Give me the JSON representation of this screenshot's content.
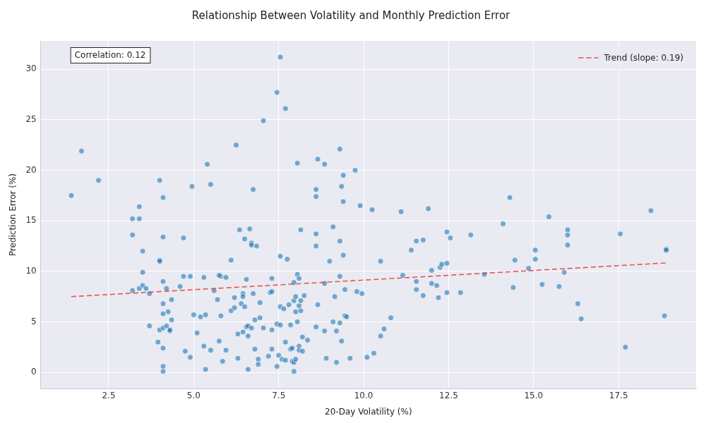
{
  "chart_data": {
    "type": "scatter",
    "title": "Relationship Between Volatility and Monthly Prediction Error",
    "x_label": "20-Day Volatility (%)",
    "y_label": "Prediction Error (%)",
    "annotations": [
      "Correlation: 0.12"
    ],
    "legend": "upper right",
    "grid": true,
    "xlim": [
      0.5,
      19.78
    ],
    "ylim": [
      -1.6,
      32.8
    ],
    "xticks": [
      2.5,
      {
        "value": 5,
        "label": "5.0"
      },
      7.5,
      {
        "value": 10,
        "label": "10.0"
      },
      12.5,
      {
        "value": 15,
        "label": "15.0"
      },
      17.5
    ],
    "yticks": [
      0,
      5,
      10,
      15,
      20,
      25,
      30
    ],
    "series": [
      {
        "type": "scatter",
        "color": "#1f77b4",
        "marker": "circle",
        "x": [
          1.4,
          1.7,
          2.2,
          3.2,
          3.2,
          3.2,
          3.4,
          3.4,
          3.4,
          3.5,
          3.5,
          3.5,
          3.6,
          3.7,
          3.7,
          4.0,
          4.0,
          4.0,
          4.0,
          3.95,
          4.1,
          4.1,
          4.1,
          4.1,
          4.1,
          4.1,
          4.1,
          4.1,
          4.1,
          4.2,
          4.2,
          4.25,
          4.3,
          4.3,
          4.35,
          4.35,
          4.6,
          4.7,
          4.7,
          4.75,
          4.9,
          4.9,
          4.95,
          5.0,
          5.1,
          5.2,
          5.3,
          5.3,
          5.35,
          5.35,
          5.4,
          5.5,
          5.5,
          5.6,
          5.7,
          5.75,
          5.8,
          5.75,
          5.8,
          5.85,
          5.95,
          5.95,
          6.1,
          6.1,
          6.2,
          6.2,
          6.25,
          6.3,
          6.3,
          6.35,
          6.4,
          6.45,
          6.45,
          6.45,
          6.5,
          6.5,
          6.55,
          6.55,
          6.6,
          6.6,
          6.6,
          6.65,
          6.7,
          6.7,
          6.7,
          6.75,
          6.75,
          6.8,
          6.8,
          6.85,
          6.9,
          6.9,
          6.95,
          6.95,
          7.05,
          7.05,
          7.2,
          7.25,
          7.3,
          7.3,
          7.3,
          7.3,
          7.45,
          7.45,
          7.45,
          7.5,
          7.55,
          7.55,
          7.55,
          7.55,
          7.6,
          7.65,
          7.7,
          7.7,
          7.7,
          7.75,
          7.8,
          7.85,
          7.85,
          7.9,
          7.9,
          7.95,
          7.95,
          7.95,
          7.95,
          8.0,
          8.0,
          8.0,
          8.05,
          8.05,
          8.05,
          8.1,
          8.1,
          8.1,
          8.1,
          8.15,
          8.15,
          8.15,
          8.2,
          8.2,
          8.25,
          8.35,
          8.6,
          8.6,
          8.6,
          8.6,
          8.6,
          8.65,
          8.65,
          8.85,
          8.85,
          8.85,
          8.9,
          9.0,
          9.1,
          9.1,
          9.15,
          9.2,
          9.2,
          9.3,
          9.3,
          9.3,
          9.3,
          9.35,
          9.35,
          9.4,
          9.4,
          9.4,
          9.45,
          9.45,
          9.5,
          9.6,
          9.75,
          9.8,
          9.9,
          9.95,
          10.1,
          10.25,
          10.3,
          10.5,
          10.5,
          10.6,
          10.8,
          11.1,
          11.15,
          11.4,
          11.55,
          11.55,
          11.55,
          11.75,
          11.75,
          11.9,
          12.0,
          12.0,
          12.15,
          12.2,
          12.25,
          12.3,
          12.45,
          12.45,
          12.45,
          12.55,
          12.85,
          13.15,
          13.55,
          14.1,
          14.3,
          14.4,
          14.45,
          14.85,
          15.05,
          15.05,
          15.25,
          15.45,
          15.75,
          15.9,
          16.0,
          16.0,
          16.0,
          16.3,
          16.4,
          17.55,
          17.7,
          18.45,
          18.85,
          18.9,
          18.9
        ],
        "values": [
          17.5,
          21.9,
          19.0,
          15.2,
          13.6,
          8.1,
          16.4,
          15.2,
          8.3,
          12.0,
          9.9,
          8.6,
          8.3,
          4.6,
          7.8,
          19.0,
          11.1,
          11.0,
          4.2,
          3.0,
          17.3,
          13.4,
          9.0,
          6.8,
          5.8,
          4.4,
          2.4,
          0.6,
          0.1,
          8.3,
          4.6,
          6.0,
          4.1,
          4.2,
          7.2,
          5.2,
          8.5,
          9.5,
          13.3,
          2.1,
          1.5,
          9.5,
          18.4,
          5.7,
          3.9,
          5.5,
          9.4,
          2.6,
          5.7,
          0.3,
          20.6,
          18.6,
          2.2,
          8.1,
          7.2,
          3.1,
          9.5,
          9.6,
          5.6,
          1.1,
          9.4,
          2.2,
          11.1,
          6.1,
          7.4,
          6.4,
          22.5,
          3.8,
          1.4,
          14.1,
          6.8,
          7.8,
          7.5,
          4.0,
          6.5,
          13.2,
          9.2,
          4.5,
          3.6,
          0.3,
          4.6,
          14.2,
          12.8,
          12.6,
          4.4,
          18.1,
          7.8,
          5.2,
          2.3,
          12.5,
          1.3,
          0.8,
          5.4,
          6.9,
          24.9,
          4.4,
          1.6,
          7.9,
          9.3,
          8.0,
          2.3,
          4.2,
          27.7,
          4.8,
          0.6,
          1.7,
          31.2,
          11.5,
          6.5,
          4.7,
          1.3,
          6.3,
          26.1,
          3.0,
          1.2,
          11.2,
          6.7,
          4.7,
          2.3,
          2.4,
          1.1,
          1.0,
          0.1,
          7.1,
          8.9,
          7.5,
          1.3,
          6.0,
          9.7,
          20.7,
          5.0,
          9.3,
          2.6,
          2.2,
          6.6,
          6.1,
          14.1,
          7.1,
          3.5,
          2.1,
          7.6,
          3.2,
          18.1,
          17.4,
          13.7,
          12.5,
          4.5,
          6.7,
          21.1,
          20.6,
          8.8,
          4.1,
          1.4,
          11.0,
          14.4,
          5.0,
          7.5,
          4.1,
          1.0,
          9.5,
          13.0,
          22.1,
          4.9,
          3.1,
          18.4,
          19.5,
          16.9,
          11.6,
          8.2,
          5.6,
          5.5,
          1.4,
          20.0,
          8.0,
          16.5,
          7.8,
          1.5,
          16.1,
          1.9,
          11.0,
          3.6,
          4.3,
          5.4,
          15.9,
          9.6,
          12.1,
          13.0,
          9.0,
          8.2,
          13.1,
          7.6,
          16.2,
          10.1,
          8.8,
          8.6,
          7.4,
          10.4,
          10.7,
          10.8,
          13.9,
          7.9,
          13.3,
          7.9,
          13.6,
          9.7,
          14.7,
          17.3,
          8.4,
          11.1,
          10.3,
          12.1,
          11.2,
          8.7,
          15.4,
          8.5,
          9.9,
          14.1,
          13.6,
          12.6,
          6.8,
          5.3,
          13.7,
          2.5,
          16.0,
          5.6,
          12.2,
          12.1
        ]
      },
      {
        "name": "Trend (slope: 0.19)",
        "type": "line",
        "color": "#e53935",
        "line_style": "dashed",
        "x": [
          1.4,
          18.9
        ],
        "values": [
          7.5,
          10.83
        ]
      }
    ]
  }
}
